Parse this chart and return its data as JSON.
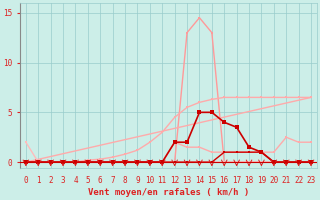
{
  "bg_color": "#cceee8",
  "grid_color": "#99cccc",
  "font_color": "#dd2222",
  "xlabel": "Vent moyen/en rafales ( km/h )",
  "xlim_min": -0.5,
  "xlim_max": 23.5,
  "ylim_min": -0.6,
  "ylim_max": 16,
  "yticks": [
    0,
    5,
    10,
    15
  ],
  "xticks": [
    0,
    1,
    2,
    3,
    4,
    5,
    6,
    7,
    8,
    9,
    10,
    11,
    12,
    13,
    14,
    15,
    16,
    17,
    18,
    19,
    20,
    21,
    22,
    23
  ],
  "tick_font_size": 5.5,
  "label_font_size": 6.5,
  "series": [
    {
      "name": "peak_curve",
      "color": "#ff9999",
      "linewidth": 1.0,
      "marker": "s",
      "markersize": 2.0,
      "x": [
        0,
        1,
        2,
        3,
        4,
        5,
        6,
        7,
        8,
        9,
        10,
        11,
        12,
        13,
        14,
        15,
        16,
        17,
        18,
        19,
        20,
        21,
        22,
        23
      ],
      "y": [
        0,
        0,
        0,
        0,
        0,
        0,
        0,
        0,
        0,
        0,
        0,
        0,
        0,
        13,
        14.5,
        13,
        0,
        0,
        0,
        0,
        0,
        0,
        0,
        0
      ]
    },
    {
      "name": "rising_line",
      "color": "#ffaaaa",
      "linewidth": 1.0,
      "marker": null,
      "markersize": 0,
      "x": [
        0,
        23
      ],
      "y": [
        0,
        6.5
      ]
    },
    {
      "name": "gradual_rise",
      "color": "#ffaaaa",
      "linewidth": 1.0,
      "marker": "s",
      "markersize": 2.0,
      "x": [
        0,
        1,
        2,
        3,
        4,
        5,
        6,
        7,
        8,
        9,
        10,
        11,
        12,
        13,
        14,
        15,
        16,
        17,
        18,
        19,
        20,
        21,
        22,
        23
      ],
      "y": [
        0,
        0,
        0,
        0,
        0,
        0.2,
        0.3,
        0.5,
        0.8,
        1.2,
        2.0,
        3.0,
        4.5,
        5.5,
        6.0,
        6.3,
        6.5,
        6.5,
        6.5,
        6.5,
        6.5,
        6.5,
        6.5,
        6.5
      ]
    },
    {
      "name": "bump_pink",
      "color": "#ffaaaa",
      "linewidth": 1.0,
      "marker": "s",
      "markersize": 2.0,
      "x": [
        0,
        1,
        2,
        3,
        4,
        5,
        6,
        7,
        8,
        9,
        10,
        11,
        12,
        13,
        14,
        15,
        16,
        17,
        18,
        19,
        20,
        21,
        22,
        23
      ],
      "y": [
        0,
        0,
        0,
        0,
        0,
        0,
        0,
        0,
        0,
        0,
        0,
        0,
        2.0,
        1.5,
        1.5,
        1.0,
        1.0,
        1.0,
        1.0,
        1.0,
        1.0,
        2.5,
        2.0,
        2.0
      ]
    },
    {
      "name": "start2_pink",
      "color": "#ffbbbb",
      "linewidth": 1.0,
      "marker": "s",
      "markersize": 2.0,
      "x": [
        0,
        1,
        2,
        3,
        4,
        5,
        6,
        7,
        8,
        9,
        10,
        11,
        12,
        13,
        14,
        15,
        16,
        17,
        18,
        19,
        20,
        21,
        22,
        23
      ],
      "y": [
        2.0,
        0,
        0,
        0,
        0,
        0,
        0,
        0,
        0,
        0,
        0,
        0,
        0,
        0,
        0,
        0,
        0,
        0,
        0,
        0,
        0,
        0,
        0,
        0
      ]
    },
    {
      "name": "dark_red_bumpy",
      "color": "#cc0000",
      "linewidth": 1.2,
      "marker": "s",
      "markersize": 2.5,
      "x": [
        0,
        1,
        2,
        3,
        4,
        5,
        6,
        7,
        8,
        9,
        10,
        11,
        12,
        13,
        14,
        15,
        16,
        17,
        18,
        19,
        20,
        21,
        22,
        23
      ],
      "y": [
        0,
        0,
        0,
        0,
        0,
        0,
        0,
        0,
        0,
        0,
        0,
        0,
        2.0,
        2.0,
        5.0,
        5.0,
        4.0,
        3.5,
        1.5,
        1.0,
        0,
        0,
        0,
        0
      ]
    },
    {
      "name": "dark_low_flat",
      "color": "#cc0000",
      "linewidth": 1.0,
      "marker": "s",
      "markersize": 2.0,
      "x": [
        0,
        1,
        2,
        3,
        4,
        5,
        6,
        7,
        8,
        9,
        10,
        11,
        12,
        13,
        14,
        15,
        16,
        17,
        18,
        19,
        20,
        21,
        22,
        23
      ],
      "y": [
        0,
        0,
        0,
        0,
        0,
        0,
        0,
        0,
        0,
        0,
        0,
        0,
        0,
        0,
        0,
        0,
        1.0,
        1.0,
        1.0,
        1.0,
        0,
        0,
        0,
        0
      ]
    }
  ]
}
